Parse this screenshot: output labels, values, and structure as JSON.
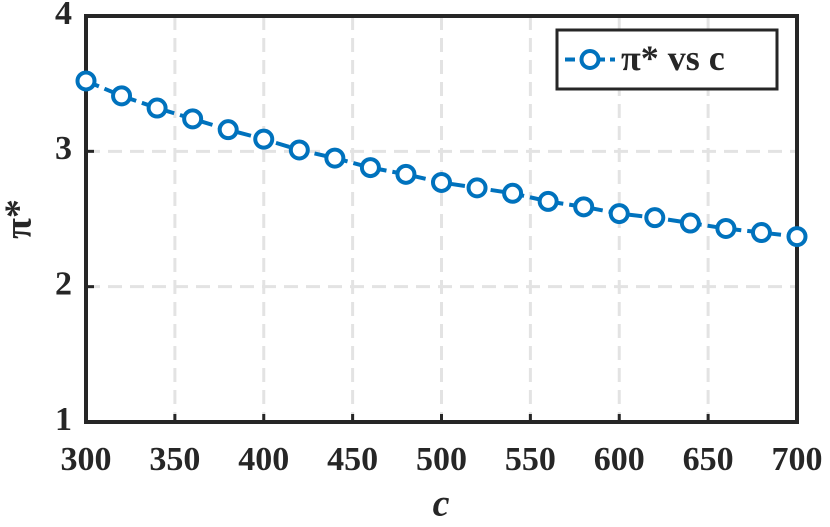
{
  "chart_data": {
    "type": "line",
    "x": [
      300,
      320,
      340,
      360,
      380,
      400,
      420,
      440,
      460,
      480,
      500,
      520,
      540,
      560,
      580,
      600,
      620,
      640,
      660,
      680,
      700
    ],
    "series": [
      {
        "name": "π* vs c",
        "color": "#0072bd",
        "values": [
          3.52,
          3.41,
          3.32,
          3.24,
          3.16,
          3.09,
          3.01,
          2.95,
          2.88,
          2.83,
          2.77,
          2.73,
          2.69,
          2.63,
          2.59,
          2.54,
          2.51,
          2.47,
          2.43,
          2.4,
          2.37
        ]
      }
    ],
    "xlabel": "c",
    "ylabel": "π*",
    "xlim": [
      300,
      700
    ],
    "ylim": [
      1,
      4
    ],
    "xticks": [
      300,
      350,
      400,
      450,
      500,
      550,
      600,
      650,
      700
    ],
    "yticks": [
      1,
      2,
      3,
      4
    ],
    "grid": true,
    "legend": "upper right"
  }
}
